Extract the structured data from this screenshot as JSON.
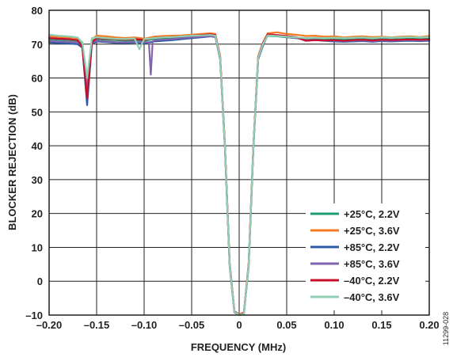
{
  "chart_data": {
    "type": "line",
    "xlabel": "FREQUENCY (MHz)",
    "ylabel": "BLOCKER REJECTION (dB)",
    "xlim": [
      -0.2,
      0.2
    ],
    "ylim": [
      -10,
      80
    ],
    "grid": true,
    "legend_position": "bottom-right",
    "x_ticks": [
      "–0.20",
      "–0.15",
      "–0.10",
      "–0.05",
      "0",
      "0.05",
      "0.10",
      "0.15",
      "0.20"
    ],
    "x_tick_values": [
      -0.2,
      -0.15,
      -0.1,
      -0.05,
      0,
      0.05,
      0.1,
      0.15,
      0.2
    ],
    "y_ticks": [
      "–10",
      "0",
      "10",
      "20",
      "30",
      "40",
      "50",
      "60",
      "70",
      "80"
    ],
    "y_tick_values": [
      -10,
      0,
      10,
      20,
      30,
      40,
      50,
      60,
      70,
      80
    ],
    "figure_id": "11299-028",
    "series": [
      {
        "name": "+25°C, 2.2V",
        "color": "#1e9e6e",
        "x": [
          -0.2,
          -0.19,
          -0.18,
          -0.17,
          -0.165,
          -0.16,
          -0.155,
          -0.15,
          -0.14,
          -0.13,
          -0.12,
          -0.11,
          -0.1,
          -0.09,
          -0.08,
          -0.07,
          -0.06,
          -0.05,
          -0.04,
          -0.03,
          -0.025,
          -0.02,
          -0.015,
          -0.01,
          -0.005,
          0.0,
          0.005,
          0.01,
          0.015,
          0.02,
          0.025,
          0.03,
          0.04,
          0.05,
          0.06,
          0.07,
          0.08,
          0.09,
          0.1,
          0.11,
          0.12,
          0.13,
          0.14,
          0.15,
          0.16,
          0.17,
          0.18,
          0.19,
          0.2
        ],
        "values": [
          71.5,
          71.3,
          71.2,
          71.0,
          70.0,
          58.0,
          71.0,
          71.5,
          71.3,
          71.2,
          71.0,
          71.2,
          71.0,
          71.5,
          71.6,
          71.8,
          72.0,
          72.2,
          72.4,
          72.6,
          72.5,
          66.0,
          40.0,
          5.0,
          -9.0,
          -10.0,
          -9.5,
          5.0,
          40.0,
          66.0,
          70.0,
          72.5,
          72.3,
          72.0,
          71.8,
          71.5,
          71.6,
          71.5,
          71.4,
          71.3,
          71.4,
          71.5,
          71.3,
          71.5,
          71.4,
          71.5,
          71.6,
          71.5,
          71.6
        ]
      },
      {
        "name": "+25°C, 3.6V",
        "color": "#f47920",
        "x": [
          -0.2,
          -0.19,
          -0.18,
          -0.17,
          -0.165,
          -0.16,
          -0.155,
          -0.15,
          -0.14,
          -0.13,
          -0.12,
          -0.11,
          -0.1,
          -0.09,
          -0.08,
          -0.07,
          -0.06,
          -0.05,
          -0.04,
          -0.03,
          -0.025,
          -0.02,
          -0.015,
          -0.01,
          -0.005,
          0.0,
          0.005,
          0.01,
          0.015,
          0.02,
          0.025,
          0.03,
          0.04,
          0.05,
          0.06,
          0.07,
          0.08,
          0.09,
          0.1,
          0.11,
          0.12,
          0.13,
          0.14,
          0.15,
          0.16,
          0.17,
          0.18,
          0.19,
          0.2
        ],
        "values": [
          72.3,
          72.1,
          72.0,
          71.8,
          70.5,
          57.0,
          71.5,
          72.5,
          72.3,
          72.0,
          71.8,
          72.0,
          71.6,
          72.2,
          72.4,
          72.5,
          72.6,
          72.8,
          73.0,
          73.2,
          73.0,
          66.5,
          40.5,
          5.5,
          -8.8,
          -9.8,
          -9.2,
          5.5,
          40.5,
          66.5,
          70.5,
          73.2,
          73.5,
          73.0,
          72.8,
          72.4,
          72.5,
          72.2,
          72.3,
          72.0,
          72.2,
          72.3,
          72.1,
          72.2,
          72.0,
          72.2,
          72.3,
          72.1,
          72.4
        ]
      },
      {
        "name": "+85°C, 2.2V",
        "color": "#2e5aa5",
        "x": [
          -0.2,
          -0.19,
          -0.18,
          -0.17,
          -0.165,
          -0.16,
          -0.155,
          -0.15,
          -0.14,
          -0.13,
          -0.12,
          -0.11,
          -0.1,
          -0.09,
          -0.08,
          -0.07,
          -0.06,
          -0.05,
          -0.04,
          -0.03,
          -0.025,
          -0.02,
          -0.015,
          -0.01,
          -0.005,
          0.0,
          0.005,
          0.01,
          0.015,
          0.02,
          0.025,
          0.03,
          0.04,
          0.05,
          0.06,
          0.07,
          0.08,
          0.09,
          0.1,
          0.11,
          0.12,
          0.13,
          0.14,
          0.15,
          0.16,
          0.17,
          0.18,
          0.19,
          0.2
        ],
        "values": [
          70.5,
          70.3,
          70.2,
          70.0,
          69.0,
          52.0,
          70.0,
          70.8,
          70.6,
          70.4,
          70.3,
          70.5,
          70.2,
          70.8,
          71.0,
          71.2,
          71.5,
          71.8,
          72.0,
          72.3,
          72.1,
          65.5,
          39.5,
          4.5,
          -9.2,
          -10.0,
          -9.6,
          4.5,
          39.5,
          65.5,
          69.5,
          72.8,
          72.6,
          72.3,
          72.0,
          71.0,
          71.2,
          71.0,
          70.8,
          70.7,
          70.8,
          70.9,
          70.7,
          70.9,
          70.8,
          70.9,
          71.0,
          70.9,
          71.0
        ]
      },
      {
        "name": "+85°C, 3.6V",
        "color": "#8064ad",
        "x": [
          -0.2,
          -0.19,
          -0.18,
          -0.17,
          -0.165,
          -0.16,
          -0.155,
          -0.15,
          -0.14,
          -0.13,
          -0.12,
          -0.11,
          -0.1,
          -0.095,
          -0.093,
          -0.091,
          -0.088,
          -0.08,
          -0.07,
          -0.06,
          -0.05,
          -0.04,
          -0.03,
          -0.025,
          -0.02,
          -0.015,
          -0.01,
          -0.005,
          0.0,
          0.005,
          0.01,
          0.015,
          0.02,
          0.025,
          0.03,
          0.04,
          0.05,
          0.06,
          0.07,
          0.08,
          0.09,
          0.1,
          0.11,
          0.12,
          0.13,
          0.14,
          0.15,
          0.16,
          0.17,
          0.18,
          0.19,
          0.2
        ],
        "values": [
          71.0,
          70.8,
          70.7,
          70.5,
          69.5,
          56.0,
          70.5,
          71.0,
          70.8,
          70.6,
          70.5,
          70.7,
          70.5,
          70.6,
          61.0,
          70.8,
          71.2,
          71.3,
          71.5,
          71.8,
          72.0,
          72.2,
          72.4,
          72.2,
          65.8,
          39.8,
          4.8,
          -9.1,
          -10.0,
          -9.4,
          4.8,
          39.8,
          65.8,
          69.8,
          72.6,
          72.4,
          72.1,
          71.8,
          71.2,
          71.3,
          71.1,
          71.0,
          70.9,
          71.0,
          71.1,
          70.9,
          71.1,
          71.0,
          71.1,
          71.2,
          71.1,
          71.2
        ]
      },
      {
        "name": "–40°C, 2.2V",
        "color": "#c8102e",
        "x": [
          -0.2,
          -0.19,
          -0.18,
          -0.17,
          -0.165,
          -0.16,
          -0.155,
          -0.15,
          -0.14,
          -0.13,
          -0.12,
          -0.11,
          -0.1,
          -0.09,
          -0.08,
          -0.07,
          -0.06,
          -0.05,
          -0.04,
          -0.03,
          -0.025,
          -0.02,
          -0.015,
          -0.01,
          -0.005,
          0.0,
          0.005,
          0.01,
          0.015,
          0.02,
          0.025,
          0.03,
          0.04,
          0.05,
          0.06,
          0.07,
          0.08,
          0.09,
          0.1,
          0.11,
          0.12,
          0.13,
          0.14,
          0.15,
          0.16,
          0.17,
          0.18,
          0.19,
          0.2
        ],
        "values": [
          71.8,
          71.6,
          71.5,
          71.2,
          69.0,
          54.0,
          70.5,
          71.8,
          71.6,
          71.5,
          71.3,
          71.5,
          71.2,
          71.8,
          72.0,
          72.1,
          72.3,
          72.5,
          72.7,
          72.9,
          72.7,
          66.2,
          40.2,
          5.2,
          -8.9,
          -9.9,
          -9.3,
          5.2,
          40.2,
          66.2,
          70.2,
          72.9,
          72.7,
          72.4,
          72.1,
          71.0,
          71.2,
          71.1,
          71.2,
          71.0,
          71.2,
          71.3,
          71.1,
          71.3,
          71.2,
          71.3,
          71.4,
          71.3,
          71.4
        ]
      },
      {
        "name": "–40°C, 3.6V",
        "color": "#8fd0b4",
        "x": [
          -0.2,
          -0.19,
          -0.18,
          -0.17,
          -0.165,
          -0.16,
          -0.155,
          -0.15,
          -0.14,
          -0.13,
          -0.12,
          -0.11,
          -0.105,
          -0.1,
          -0.095,
          -0.09,
          -0.08,
          -0.07,
          -0.06,
          -0.05,
          -0.04,
          -0.03,
          -0.025,
          -0.02,
          -0.015,
          -0.01,
          -0.005,
          0.0,
          0.005,
          0.01,
          0.015,
          0.02,
          0.025,
          0.03,
          0.04,
          0.05,
          0.06,
          0.07,
          0.08,
          0.09,
          0.1,
          0.11,
          0.12,
          0.13,
          0.14,
          0.15,
          0.16,
          0.17,
          0.18,
          0.19,
          0.2
        ],
        "values": [
          72.8,
          72.5,
          72.3,
          72.0,
          70.5,
          60.0,
          71.8,
          72.0,
          71.8,
          71.6,
          71.5,
          71.7,
          68.5,
          71.5,
          71.6,
          71.8,
          72.0,
          72.1,
          72.3,
          72.5,
          72.6,
          72.7,
          72.5,
          66.0,
          40.0,
          5.0,
          -9.0,
          -10.0,
          -9.5,
          5.0,
          40.0,
          66.0,
          70.0,
          72.6,
          72.4,
          72.2,
          72.0,
          71.8,
          71.9,
          71.8,
          71.9,
          71.8,
          71.9,
          72.0,
          71.8,
          72.0,
          71.9,
          72.0,
          72.1,
          72.0,
          72.1
        ]
      }
    ]
  }
}
